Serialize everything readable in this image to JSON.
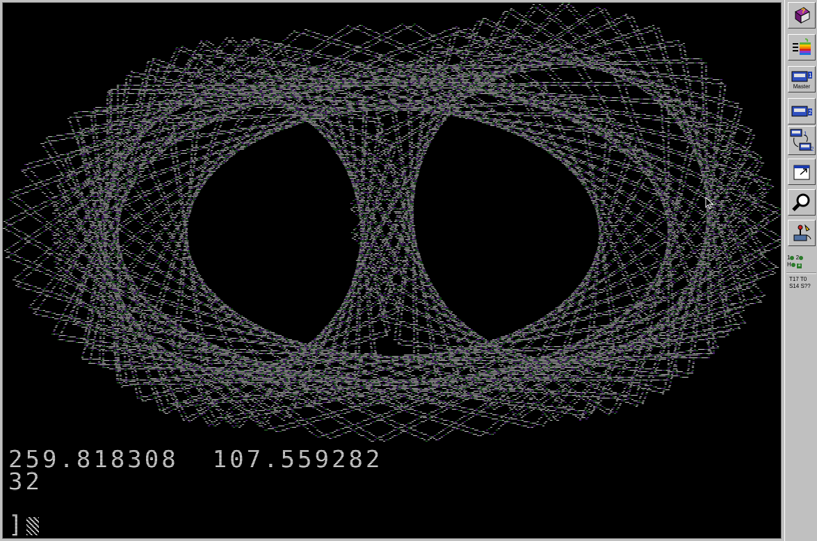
{
  "screen": {
    "line1_left": "259.818308",
    "line1_right": "107.559282",
    "line2": "32",
    "prompt": "]"
  },
  "toolbar": {
    "buttons": [
      {
        "name": "help-icon",
        "caption": ""
      },
      {
        "name": "apple-run-icon",
        "caption": ""
      },
      {
        "name": "disk-1-icon",
        "caption": "Master"
      },
      {
        "name": "disk-2-icon",
        "caption": ""
      },
      {
        "name": "swap-disks-icon",
        "caption": ""
      },
      {
        "name": "fullscreen-icon",
        "caption": ""
      },
      {
        "name": "debug-magnifier-icon",
        "caption": ""
      },
      {
        "name": "settings-joystick-icon",
        "caption": ""
      }
    ],
    "led_row1": "1   2",
    "led_row2": "H   ",
    "status_row1": "T17  T0",
    "status_row2": "S14  S??"
  },
  "colors": {
    "white": "#ffffff",
    "green": "#3aa53a",
    "violet": "#8a3ad0",
    "background": "#000000",
    "chrome": "#c0c0c0"
  }
}
